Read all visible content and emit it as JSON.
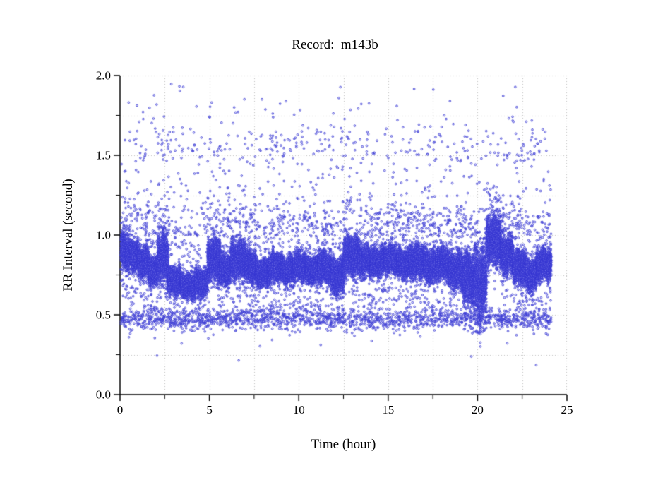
{
  "chart_data": {
    "type": "scatter",
    "title": "Record:  m143b",
    "xlabel": "Time (hour)",
    "ylabel": "RR Interval (second)",
    "xlim": [
      0,
      25
    ],
    "ylim": [
      0.0,
      2.0
    ],
    "x_tick_values": [
      0,
      5,
      10,
      15,
      20,
      25
    ],
    "x_tick_labels": [
      "0",
      "5",
      "10",
      "15",
      "20",
      "25"
    ],
    "x_minor_step": 2.5,
    "y_tick_values": [
      0.0,
      0.5,
      1.0,
      1.5,
      2.0
    ],
    "y_tick_labels": [
      "0.0",
      "0.5",
      "1.0",
      "1.5",
      "2.0"
    ],
    "y_minor_step": 0.25,
    "grid": {
      "style": "dotted",
      "color": "#bdbdbd",
      "x_step": 2.5,
      "y_step": 0.25
    },
    "axis_color": "#000000",
    "marker": {
      "shape": "open-circle",
      "radius_px": 1.35,
      "stroke": "#3232d0",
      "fill": "#9696f0"
    },
    "legend": "none",
    "t_range": [
      0.05,
      24.12
    ],
    "band_count": 34000,
    "band_segments": [
      [
        0.05,
        0.35,
        0.91,
        0.09
      ],
      [
        0.35,
        1.0,
        0.87,
        0.08
      ],
      [
        1.0,
        1.6,
        0.83,
        0.08
      ],
      [
        1.6,
        2.1,
        0.77,
        0.07
      ],
      [
        2.1,
        2.7,
        0.87,
        0.13
      ],
      [
        2.7,
        3.4,
        0.71,
        0.07
      ],
      [
        3.4,
        4.2,
        0.68,
        0.06
      ],
      [
        4.2,
        4.9,
        0.7,
        0.07
      ],
      [
        4.9,
        5.6,
        0.85,
        0.11
      ],
      [
        5.6,
        6.2,
        0.78,
        0.08
      ],
      [
        6.2,
        7.0,
        0.85,
        0.1
      ],
      [
        7.0,
        7.6,
        0.8,
        0.08
      ],
      [
        7.6,
        8.3,
        0.76,
        0.07
      ],
      [
        8.3,
        9.0,
        0.8,
        0.07
      ],
      [
        9.0,
        9.7,
        0.78,
        0.07
      ],
      [
        9.7,
        10.4,
        0.8,
        0.07
      ],
      [
        10.4,
        11.1,
        0.78,
        0.07
      ],
      [
        11.1,
        11.8,
        0.8,
        0.08
      ],
      [
        11.8,
        12.5,
        0.74,
        0.09
      ],
      [
        12.5,
        13.3,
        0.87,
        0.1
      ],
      [
        13.3,
        14.0,
        0.84,
        0.08
      ],
      [
        14.0,
        14.8,
        0.83,
        0.07
      ],
      [
        14.8,
        15.5,
        0.85,
        0.07
      ],
      [
        15.5,
        16.2,
        0.82,
        0.07
      ],
      [
        16.2,
        17.0,
        0.84,
        0.08
      ],
      [
        17.0,
        17.7,
        0.8,
        0.08
      ],
      [
        17.7,
        18.4,
        0.82,
        0.08
      ],
      [
        18.4,
        19.2,
        0.78,
        0.09
      ],
      [
        19.2,
        19.8,
        0.73,
        0.13
      ],
      [
        19.8,
        20.5,
        0.7,
        0.19
      ],
      [
        20.5,
        21.3,
        0.97,
        0.12
      ],
      [
        21.3,
        22.0,
        0.88,
        0.1
      ],
      [
        22.0,
        22.7,
        0.8,
        0.08
      ],
      [
        22.7,
        23.3,
        0.75,
        0.08
      ],
      [
        23.3,
        24.12,
        0.82,
        0.08
      ]
    ],
    "low_band": {
      "center": 0.475,
      "sigma": 0.032,
      "count": 1600,
      "y_min": 0.3,
      "y_max": 0.58
    },
    "upper_outliers": {
      "count": 950,
      "y_min": 1.0,
      "y_max": 1.95,
      "decay": 0.28,
      "cluster_y": 1.57,
      "cluster_sigma": 0.07,
      "cluster_frac": 0.25
    },
    "deep_low_outliers": {
      "count": 10,
      "y_min": 0.18,
      "y_max": 0.38
    },
    "seed": 143
  }
}
